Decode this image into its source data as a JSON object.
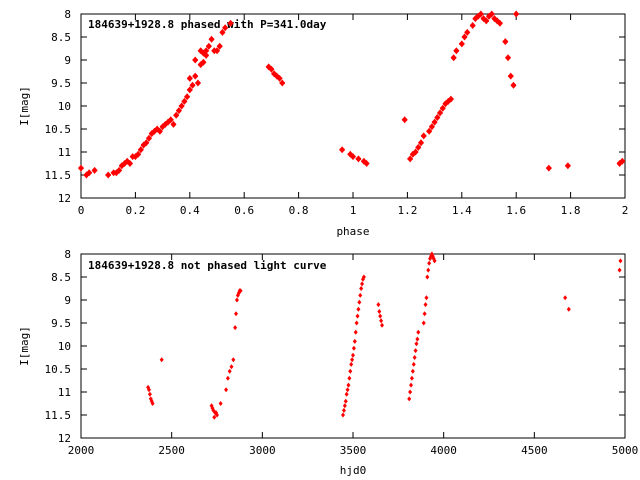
{
  "chart_data": [
    {
      "type": "scatter",
      "title": "184639+1928.8 phased with P=341.0day",
      "xlabel": "phase",
      "ylabel": "I[mag]",
      "xlim": [
        0,
        2
      ],
      "ylim": [
        8,
        12
      ],
      "y_inverted": true,
      "grid": false,
      "color": "#ff0000",
      "xticks": [
        "0",
        "0.2",
        "0.4",
        "0.6",
        "0.8",
        "1",
        "1.2",
        "1.4",
        "1.6",
        "1.8",
        "2"
      ],
      "yticks": [
        "8",
        "8.5",
        "9",
        "9.5",
        "10",
        "10.5",
        "11",
        "11.5",
        "12"
      ],
      "x": [
        0.0,
        0.02,
        0.03,
        0.05,
        0.1,
        0.12,
        0.13,
        0.14,
        0.15,
        0.16,
        0.17,
        0.18,
        0.19,
        0.2,
        0.21,
        0.22,
        0.23,
        0.24,
        0.25,
        0.26,
        0.27,
        0.28,
        0.29,
        0.3,
        0.31,
        0.32,
        0.33,
        0.34,
        0.35,
        0.36,
        0.37,
        0.38,
        0.39,
        0.4,
        0.4,
        0.41,
        0.42,
        0.42,
        0.43,
        0.44,
        0.44,
        0.45,
        0.45,
        0.46,
        0.46,
        0.47,
        0.48,
        0.49,
        0.5,
        0.51,
        0.52,
        0.53,
        0.55,
        0.69,
        0.7,
        0.71,
        0.72,
        0.73,
        0.74,
        0.96,
        0.99,
        1.0,
        1.02,
        1.04,
        1.05,
        1.19,
        1.21,
        1.22,
        1.23,
        1.24,
        1.25,
        1.26,
        1.28,
        1.29,
        1.3,
        1.31,
        1.32,
        1.33,
        1.34,
        1.35,
        1.36,
        1.37,
        1.38,
        1.4,
        1.41,
        1.42,
        1.44,
        1.45,
        1.46,
        1.47,
        1.48,
        1.49,
        1.5,
        1.51,
        1.52,
        1.53,
        1.54,
        1.56,
        1.57,
        1.58,
        1.59,
        1.6,
        1.72,
        1.79,
        1.98,
        1.99
      ],
      "y": [
        11.35,
        11.5,
        11.45,
        11.4,
        11.5,
        11.45,
        11.45,
        11.4,
        11.3,
        11.25,
        11.2,
        11.25,
        11.1,
        11.1,
        11.05,
        10.95,
        10.85,
        10.8,
        10.7,
        10.6,
        10.55,
        10.5,
        10.55,
        10.45,
        10.4,
        10.35,
        10.3,
        10.4,
        10.2,
        10.1,
        10.0,
        9.9,
        9.8,
        9.65,
        9.4,
        9.55,
        9.35,
        9.0,
        9.5,
        9.1,
        8.8,
        9.05,
        8.85,
        8.9,
        8.8,
        8.7,
        8.55,
        8.8,
        8.8,
        8.7,
        8.4,
        8.3,
        8.2,
        9.15,
        9.2,
        9.3,
        9.35,
        9.4,
        9.5,
        10.95,
        11.05,
        11.1,
        11.15,
        11.2,
        11.25,
        10.3,
        11.15,
        11.05,
        11.0,
        10.9,
        10.8,
        10.65,
        10.55,
        10.45,
        10.35,
        10.25,
        10.15,
        10.05,
        9.95,
        9.9,
        9.85,
        8.95,
        8.8,
        8.65,
        8.5,
        8.4,
        8.25,
        8.1,
        8.05,
        8.0,
        8.1,
        8.15,
        8.05,
        8.0,
        8.1,
        8.15,
        8.2,
        8.6,
        8.95,
        9.35,
        9.55,
        8.0,
        11.35,
        11.3,
        11.25,
        11.2
      ]
    },
    {
      "type": "scatter",
      "title": "184639+1928.8 not phased light curve",
      "xlabel": "hjd0",
      "ylabel": "I[mag]",
      "xlim": [
        2000,
        5000
      ],
      "ylim": [
        8,
        12
      ],
      "y_inverted": true,
      "grid": false,
      "color": "#ff0000",
      "xticks": [
        "2000",
        "2500",
        "3000",
        "3500",
        "4000",
        "4500",
        "5000"
      ],
      "yticks": [
        "8",
        "8.5",
        "9",
        "9.5",
        "10",
        "10.5",
        "11",
        "11.5",
        "12"
      ],
      "x": [
        2370,
        2375,
        2380,
        2385,
        2390,
        2395,
        2445,
        2720,
        2725,
        2730,
        2735,
        2740,
        2745,
        2750,
        2770,
        2800,
        2810,
        2820,
        2830,
        2840,
        2850,
        2855,
        2860,
        2865,
        2870,
        2875,
        2880,
        3445,
        3450,
        3455,
        3460,
        3465,
        3470,
        3475,
        3480,
        3485,
        3490,
        3495,
        3500,
        3505,
        3510,
        3515,
        3520,
        3525,
        3530,
        3535,
        3540,
        3545,
        3550,
        3555,
        3560,
        3640,
        3645,
        3650,
        3655,
        3660,
        3810,
        3815,
        3820,
        3825,
        3830,
        3835,
        3840,
        3845,
        3850,
        3855,
        3860,
        3890,
        3895,
        3900,
        3905,
        3910,
        3915,
        3920,
        3925,
        3930,
        3935,
        3940,
        3945,
        3950,
        4670,
        4690,
        4970,
        4975
      ],
      "y": [
        10.9,
        10.95,
        11.05,
        11.15,
        11.2,
        11.25,
        10.3,
        11.3,
        11.35,
        11.4,
        11.55,
        11.45,
        11.45,
        11.5,
        11.25,
        10.95,
        10.7,
        10.55,
        10.45,
        10.3,
        9.6,
        9.3,
        9.0,
        8.9,
        8.85,
        8.8,
        8.8,
        11.5,
        11.4,
        11.3,
        11.2,
        11.05,
        10.95,
        10.85,
        10.7,
        10.55,
        10.4,
        10.3,
        10.2,
        10.05,
        9.9,
        9.7,
        9.5,
        9.35,
        9.2,
        9.05,
        8.9,
        8.75,
        8.65,
        8.55,
        8.5,
        9.1,
        9.25,
        9.35,
        9.45,
        9.55,
        11.15,
        11.0,
        10.85,
        10.7,
        10.55,
        10.4,
        10.25,
        10.1,
        9.95,
        9.85,
        9.7,
        9.5,
        9.3,
        9.1,
        8.95,
        8.5,
        8.35,
        8.2,
        8.1,
        8.05,
        8.0,
        8.05,
        8.1,
        8.15,
        8.95,
        9.2,
        8.35,
        8.15
      ]
    }
  ]
}
